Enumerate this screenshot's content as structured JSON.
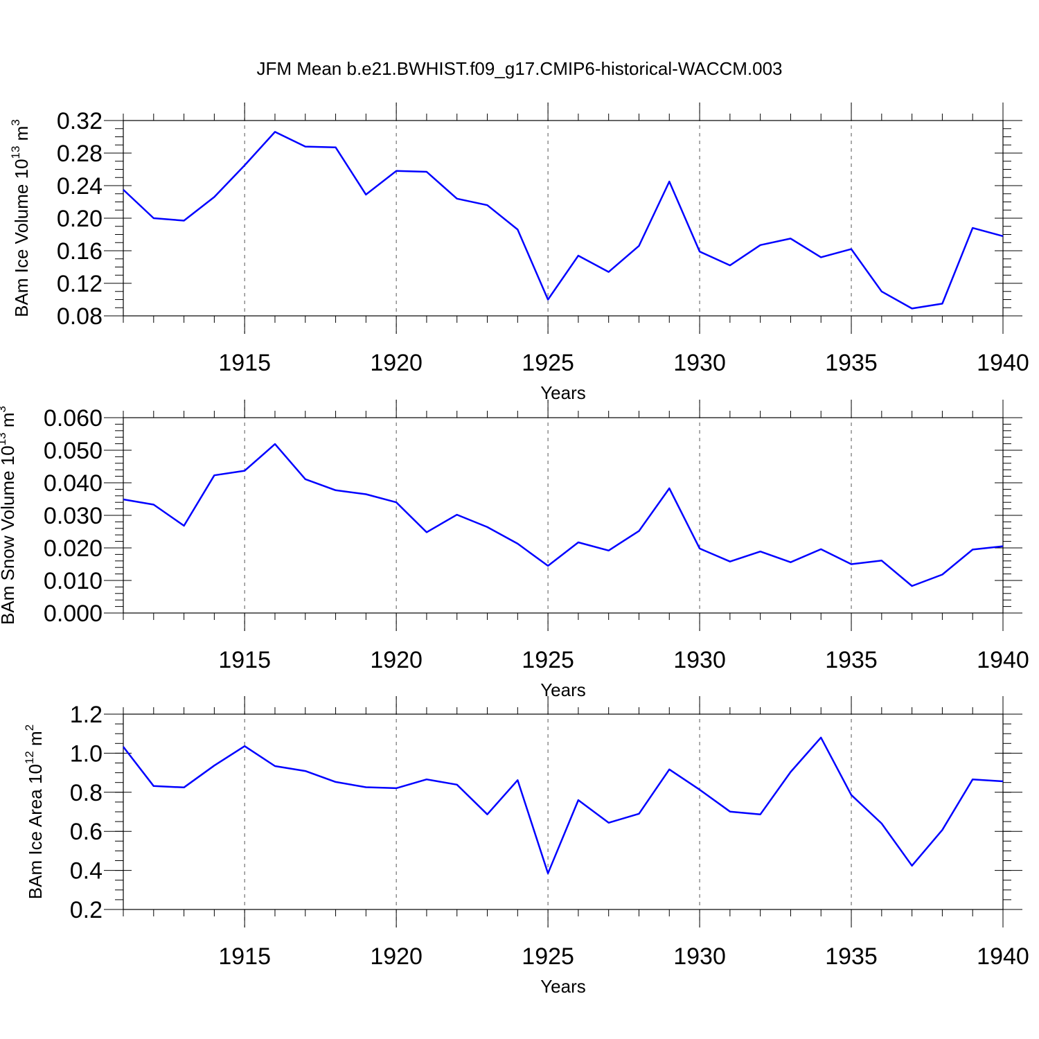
{
  "title": "JFM Mean b.e21.BWHIST.f09_g17.CMIP6-historical-WACCM.003",
  "colors": {
    "line": "#0000ff",
    "axis": "#000000",
    "grid": "#555555"
  },
  "chart_data": [
    {
      "type": "line",
      "ylabel": "BAm Ice Volume 10",
      "ylabel_exp": "13",
      "ylabel_unit": " m",
      "ylabel_unit_exp": "3",
      "xlabel": "Years",
      "x": [
        1911,
        1912,
        1913,
        1914,
        1915,
        1916,
        1917,
        1918,
        1919,
        1920,
        1921,
        1922,
        1923,
        1924,
        1925,
        1926,
        1927,
        1928,
        1929,
        1930,
        1931,
        1932,
        1933,
        1934,
        1935,
        1936,
        1937,
        1938,
        1939,
        1940
      ],
      "values": [
        0.235,
        0.2,
        0.197,
        0.226,
        0.265,
        0.306,
        0.288,
        0.287,
        0.229,
        0.258,
        0.257,
        0.224,
        0.216,
        0.186,
        0.1,
        0.154,
        0.134,
        0.166,
        0.245,
        0.159,
        0.142,
        0.167,
        0.175,
        0.152,
        0.162,
        0.11,
        0.089,
        0.095,
        0.188,
        0.178
      ],
      "xlim": [
        1911,
        1940
      ],
      "ylim": [
        0.08,
        0.32
      ],
      "xticks": [
        "1915",
        "1920",
        "1925",
        "1930",
        "1935",
        "1940"
      ],
      "yticks": [
        "0.08",
        "0.12",
        "0.16",
        "0.20",
        "0.24",
        "0.28",
        "0.32"
      ],
      "ytick_values": [
        0.08,
        0.12,
        0.16,
        0.2,
        0.24,
        0.28,
        0.32
      ],
      "ytick_minor_step": 0.01,
      "grid": "vertical dashed at major x ticks"
    },
    {
      "type": "line",
      "ylabel": "BAm Snow Volume 10",
      "ylabel_exp": "13",
      "ylabel_unit": " m",
      "ylabel_unit_exp": "3",
      "xlabel": "Years",
      "x": [
        1911,
        1912,
        1913,
        1914,
        1915,
        1916,
        1917,
        1918,
        1919,
        1920,
        1921,
        1922,
        1923,
        1924,
        1925,
        1926,
        1927,
        1928,
        1929,
        1930,
        1931,
        1932,
        1933,
        1934,
        1935,
        1936,
        1937,
        1938,
        1939,
        1940
      ],
      "values": [
        0.0349,
        0.0333,
        0.0268,
        0.0423,
        0.0437,
        0.0519,
        0.0411,
        0.0377,
        0.0365,
        0.034,
        0.0248,
        0.0302,
        0.0264,
        0.0213,
        0.0145,
        0.0217,
        0.0192,
        0.0252,
        0.0383,
        0.0198,
        0.0158,
        0.0189,
        0.0156,
        0.0196,
        0.015,
        0.0161,
        0.0083,
        0.0118,
        0.0195,
        0.0205
      ],
      "xlim": [
        1911,
        1940
      ],
      "ylim": [
        0.0,
        0.06
      ],
      "xticks": [
        "1915",
        "1920",
        "1925",
        "1930",
        "1935",
        "1940"
      ],
      "yticks": [
        "0.000",
        "0.010",
        "0.020",
        "0.030",
        "0.040",
        "0.050",
        "0.060"
      ],
      "ytick_values": [
        0.0,
        0.01,
        0.02,
        0.03,
        0.04,
        0.05,
        0.06
      ],
      "ytick_minor_step": 0.002,
      "grid": "vertical dashed at major x ticks"
    },
    {
      "type": "line",
      "ylabel": "BAm Ice Area 10",
      "ylabel_exp": "12",
      "ylabel_unit": " m",
      "ylabel_unit_exp": "2",
      "xlabel": "Years",
      "x": [
        1911,
        1912,
        1913,
        1914,
        1915,
        1916,
        1917,
        1918,
        1919,
        1920,
        1921,
        1922,
        1923,
        1924,
        1925,
        1926,
        1927,
        1928,
        1929,
        1930,
        1931,
        1932,
        1933,
        1934,
        1935,
        1936,
        1937,
        1938,
        1939,
        1940
      ],
      "values": [
        1.033,
        0.832,
        0.825,
        0.937,
        1.036,
        0.934,
        0.909,
        0.853,
        0.826,
        0.821,
        0.866,
        0.839,
        0.687,
        0.862,
        0.385,
        0.76,
        0.644,
        0.69,
        0.917,
        0.813,
        0.701,
        0.687,
        0.904,
        1.08,
        0.786,
        0.64,
        0.424,
        0.607,
        0.866,
        0.856
      ],
      "xlim": [
        1911,
        1940
      ],
      "ylim": [
        0.2,
        1.2
      ],
      "xticks": [
        "1915",
        "1920",
        "1925",
        "1930",
        "1935",
        "1940"
      ],
      "yticks": [
        "0.2",
        "0.4",
        "0.6",
        "0.8",
        "1.0",
        "1.2"
      ],
      "ytick_values": [
        0.2,
        0.4,
        0.6,
        0.8,
        1.0,
        1.2
      ],
      "ytick_minor_step": 0.05,
      "grid": "vertical dashed at major x ticks"
    }
  ]
}
